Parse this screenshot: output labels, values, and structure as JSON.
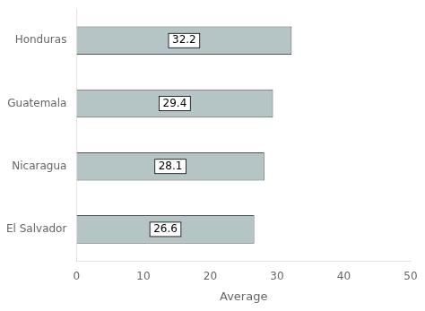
{
  "chart_data": {
    "type": "bar",
    "orientation": "horizontal",
    "categories": [
      "El Salvador",
      "Nicaragua",
      "Guatemala",
      "Honduras"
    ],
    "values": [
      26.6,
      28.1,
      29.4,
      32.2
    ],
    "color": "#b5c4c4",
    "xlabel": "Average",
    "xlim": [
      0,
      50
    ],
    "xticks": [
      0,
      10,
      20,
      30,
      40,
      50
    ],
    "data_labels": true,
    "grid": false
  }
}
